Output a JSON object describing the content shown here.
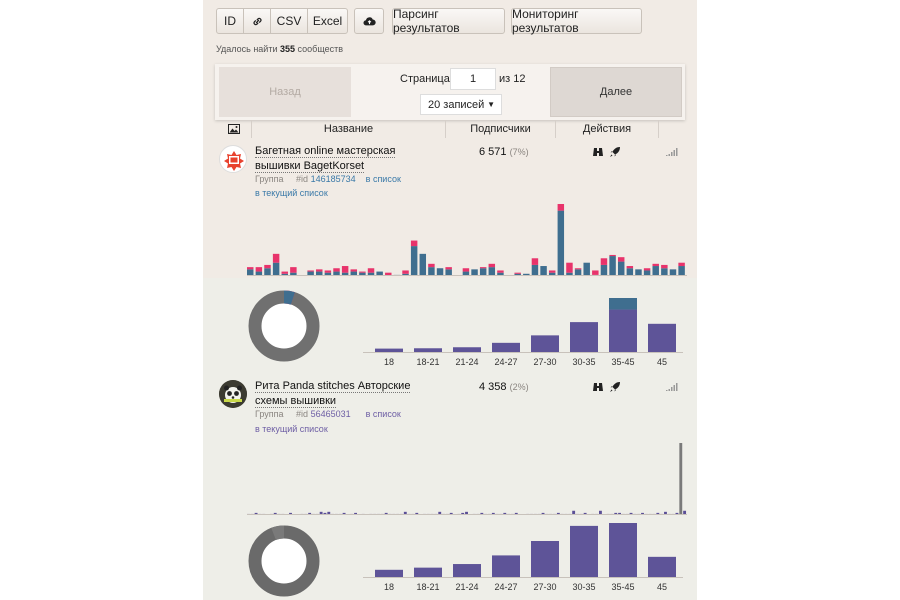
{
  "toolbar": {
    "id_label": "ID",
    "link_icon": "link-icon",
    "csv_label": "CSV",
    "excel_label": "Excel",
    "cloud_icon": "cloud-upload-icon",
    "parse_label": "Парсинг результатов",
    "monitor_label": "Мониторинг результатов"
  },
  "found": {
    "prefix": "Удалось найти",
    "count": "355",
    "suffix": "сообществ"
  },
  "pager": {
    "prev_label": "Назад",
    "next_label": "Далее",
    "page_label": "Страница",
    "page_value": "1",
    "of_label": "из 12",
    "per_page": "20 записей"
  },
  "table": {
    "image_icon": "image-icon",
    "col_name": "Название",
    "col_subs": "Подписчики",
    "col_actions": "Действия"
  },
  "rows": [
    {
      "name": "Багетная online мастерская вышивки BagetKorset",
      "type": "Группа",
      "id_prefix": "#id",
      "id": "146185734",
      "add_list": "в список",
      "current_list": "в текущий список",
      "subs": "6 571",
      "subs_pct": "(7%)",
      "colors": {
        "bar_primary": "#3f6e8f",
        "bar_secondary": "#e8336b",
        "donut": "#707070"
      },
      "activity": [
        [
          6,
          2
        ],
        [
          4,
          4
        ],
        [
          7,
          3
        ],
        [
          12,
          8
        ],
        [
          2,
          2
        ],
        [
          3,
          5
        ],
        [
          0,
          0
        ],
        [
          4,
          1
        ],
        [
          4,
          2
        ],
        [
          3,
          2
        ],
        [
          4,
          3
        ],
        [
          3,
          6
        ],
        [
          4,
          2
        ],
        [
          3,
          1
        ],
        [
          3,
          4
        ],
        [
          4,
          0
        ],
        [
          0,
          3
        ],
        [
          1,
          0
        ],
        [
          2,
          3
        ],
        [
          27,
          5
        ],
        [
          20,
          0
        ],
        [
          8,
          3
        ],
        [
          7,
          0
        ],
        [
          6,
          2
        ],
        [
          0,
          0
        ],
        [
          4,
          3
        ],
        [
          6,
          0
        ],
        [
          7,
          1
        ],
        [
          8,
          3
        ],
        [
          3,
          2
        ],
        [
          0,
          0
        ],
        [
          2,
          1
        ],
        [
          2,
          0
        ],
        [
          10,
          6
        ],
        [
          9,
          0
        ],
        [
          3,
          2
        ],
        [
          59,
          6
        ],
        [
          3,
          9
        ],
        [
          6,
          1
        ],
        [
          12,
          0
        ],
        [
          1,
          4
        ],
        [
          10,
          6
        ],
        [
          18,
          1
        ],
        [
          13,
          4
        ],
        [
          7,
          2
        ],
        [
          6,
          0
        ],
        [
          5,
          2
        ],
        [
          9,
          2
        ],
        [
          7,
          3
        ],
        [
          6,
          0
        ],
        [
          9,
          3
        ]
      ],
      "ages": [
        "18",
        "18-21",
        "21-24",
        "24-27",
        "27-30",
        "30-35",
        "35-45",
        "45"
      ],
      "age_values": [
        1.0,
        1.1,
        1.4,
        2.7,
        4.9,
        8.8,
        12.5,
        8.3
      ],
      "age_highlight": [
        0,
        0,
        0,
        0,
        0,
        0,
        3.4,
        0
      ],
      "donut_highlight": 0.17,
      "donut_secondary": 0.05
    },
    {
      "name": "Рита Panda stitches Авторские схемы вышивки",
      "type": "Группа",
      "id_prefix": "#id",
      "id": "56465031",
      "add_list": "в список",
      "current_list": "в текущий список",
      "subs": "4 358",
      "subs_pct": "(2%)",
      "colors": {
        "bar_primary": "#5b4f97",
        "bar_secondary": "#7a7a7a",
        "donut": "#6a6a6a"
      },
      "activity": [
        1,
        1,
        2,
        1,
        1,
        0,
        1,
        2,
        1,
        1,
        0,
        2,
        0,
        0,
        1,
        1,
        2,
        1,
        1,
        3,
        2,
        3,
        1,
        1,
        1,
        2,
        0,
        1,
        2,
        0,
        1,
        0,
        1,
        1,
        1,
        1,
        2,
        1,
        1,
        1,
        1,
        3,
        1,
        1,
        2,
        0,
        1,
        1,
        1,
        1,
        3,
        1,
        1,
        2,
        0,
        1,
        2,
        3,
        0,
        1,
        1,
        2,
        1,
        1,
        2,
        1,
        1,
        2,
        1,
        1,
        2,
        0,
        0,
        1,
        1,
        1,
        1,
        2,
        1,
        1,
        1,
        2,
        1,
        1,
        1,
        4,
        1,
        1,
        2,
        0,
        1,
        1,
        4,
        0,
        1,
        1,
        2,
        2,
        1,
        1,
        2,
        1,
        1,
        2,
        1,
        1,
        1,
        2,
        1,
        3,
        1,
        1,
        2,
        68,
        4
      ],
      "ages": [
        "18",
        "18-21",
        "21-24",
        "24-27",
        "27-30",
        "30-35",
        "35-45",
        "45"
      ],
      "age_values": [
        1.0,
        1.3,
        1.8,
        3.0,
        5.0,
        7.1,
        7.5,
        2.8
      ],
      "age_highlight": [
        0,
        0,
        0,
        0,
        0,
        0,
        0,
        0
      ],
      "donut_highlight": 0.06,
      "donut_secondary": 0.0
    }
  ]
}
